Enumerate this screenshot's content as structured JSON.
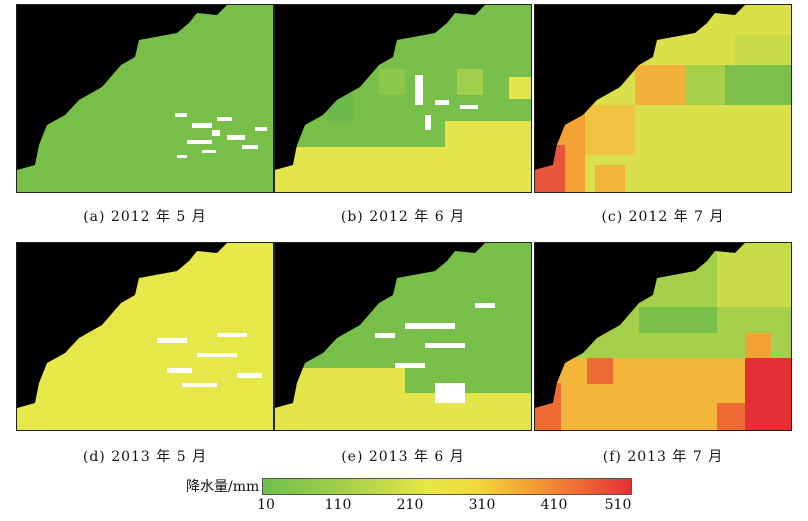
{
  "panels": [
    {
      "caption": "(a) 2012 年 5 月"
    },
    {
      "caption": "(b) 2012 年 6 月"
    },
    {
      "caption": "(c) 2012 年 7 月"
    },
    {
      "caption": "(d) 2013 年 5 月"
    },
    {
      "caption": "(e) 2013 年 6 月"
    },
    {
      "caption": "(f) 2013 年 7 月"
    }
  ],
  "legend": {
    "title": "降水量/mm",
    "ticks": [
      "10",
      "110",
      "210",
      "310",
      "410",
      "510"
    ],
    "colors": [
      "#6fbf4a",
      "#a4cf4a",
      "#e7e845",
      "#f2d83a",
      "#f2a233",
      "#ee6a35",
      "#e62f35"
    ]
  }
}
